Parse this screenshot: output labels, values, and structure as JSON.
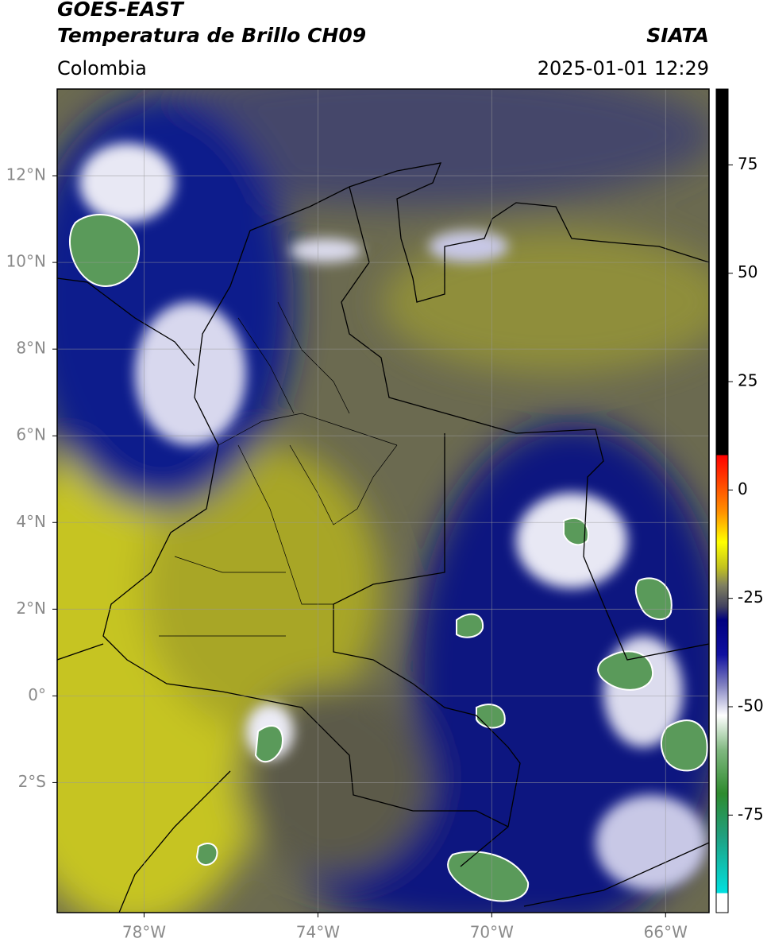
{
  "header": {
    "title": "GOES-EAST",
    "subtitle": "Temperatura de Brillo CH09",
    "source": "SIATA",
    "region": "Colombia",
    "datetime": "2025-01-01 12:29"
  },
  "map": {
    "xlim": [
      -80,
      -65
    ],
    "ylim": [
      -5,
      14
    ],
    "xticks": [
      {
        "value": -78,
        "label": "78°W"
      },
      {
        "value": -74,
        "label": "74°W"
      },
      {
        "value": -70,
        "label": "70°W"
      },
      {
        "value": -66,
        "label": "66°W"
      }
    ],
    "yticks": [
      {
        "value": 12,
        "label": "12°N"
      },
      {
        "value": 10,
        "label": "10°N"
      },
      {
        "value": 8,
        "label": "8°N"
      },
      {
        "value": 6,
        "label": "6°N"
      },
      {
        "value": 4,
        "label": "4°N"
      },
      {
        "value": 2,
        "label": "2°N"
      },
      {
        "value": 0,
        "label": "0°"
      },
      {
        "value": -2,
        "label": "2°S"
      }
    ],
    "grid": true
  },
  "colorbar": {
    "lim": [
      -97.5,
      92.5
    ],
    "ticks": [
      75,
      50,
      25,
      0,
      -25,
      -50,
      -75
    ],
    "colormap": [
      {
        "value": -97.5,
        "color": "#ffffff"
      },
      {
        "value": -93,
        "color": "#ffffff"
      },
      {
        "value": -93,
        "color": "#00e0e0"
      },
      {
        "value": -80,
        "color": "#20a080"
      },
      {
        "value": -70,
        "color": "#2e8b2e"
      },
      {
        "value": -60,
        "color": "#80b880"
      },
      {
        "value": -52,
        "color": "#ffffff"
      },
      {
        "value": -45,
        "color": "#8080c0"
      },
      {
        "value": -38,
        "color": "#1010a0"
      },
      {
        "value": -30,
        "color": "#000080"
      },
      {
        "value": -27,
        "color": "#404060"
      },
      {
        "value": -22,
        "color": "#808060"
      },
      {
        "value": -18,
        "color": "#c0c020"
      },
      {
        "value": -12,
        "color": "#ffff00"
      },
      {
        "value": -5,
        "color": "#ff9000"
      },
      {
        "value": 8,
        "color": "#ff0000"
      },
      {
        "value": 8,
        "color": "#000000"
      },
      {
        "value": 92.5,
        "color": "#000000"
      }
    ]
  }
}
